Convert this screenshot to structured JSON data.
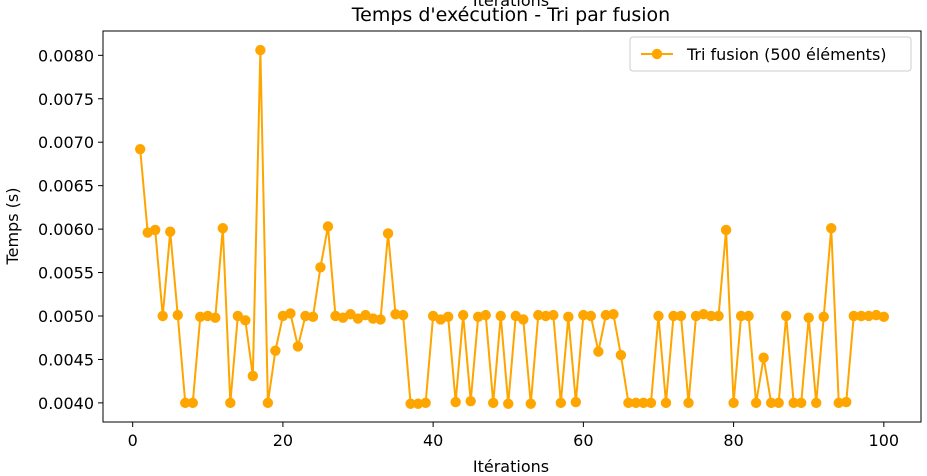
{
  "chart_data": {
    "type": "line",
    "title": "Temps d'exécution - Tri par fusion",
    "title_overlap_text": "Itérations",
    "xlabel": "Itérations",
    "ylabel": "Temps (s)",
    "xlim": [
      -3.95,
      104.95
    ],
    "ylim": [
      0.00378,
      0.00828
    ],
    "xticks": [
      0,
      20,
      40,
      60,
      80,
      100
    ],
    "yticks": [
      0.004,
      0.0045,
      0.005,
      0.0055,
      0.006,
      0.0065,
      0.007,
      0.0075,
      0.008
    ],
    "ytick_labels": [
      "0.0040",
      "0.0045",
      "0.0050",
      "0.0055",
      "0.0060",
      "0.0065",
      "0.0070",
      "0.0075",
      "0.0080"
    ],
    "grid": false,
    "legend_position": "top-right",
    "color": "#FFA500",
    "series": [
      {
        "name": "Tri fusion (500 éléments)",
        "x": [
          1,
          2,
          3,
          4,
          5,
          6,
          7,
          8,
          9,
          10,
          11,
          12,
          13,
          14,
          15,
          16,
          17,
          18,
          19,
          20,
          21,
          22,
          23,
          24,
          25,
          26,
          27,
          28,
          29,
          30,
          31,
          32,
          33,
          34,
          35,
          36,
          37,
          38,
          39,
          40,
          41,
          42,
          43,
          44,
          45,
          46,
          47,
          48,
          49,
          50,
          51,
          52,
          53,
          54,
          55,
          56,
          57,
          58,
          59,
          60,
          61,
          62,
          63,
          64,
          65,
          66,
          67,
          68,
          69,
          70,
          71,
          72,
          73,
          74,
          75,
          76,
          77,
          78,
          79,
          80,
          81,
          82,
          83,
          84,
          85,
          86,
          87,
          88,
          89,
          90,
          91,
          92,
          93,
          94,
          95,
          96,
          97,
          98,
          99,
          100
        ],
        "y": [
          0.00692,
          0.00596,
          0.00599,
          0.005,
          0.00597,
          0.00501,
          0.004,
          0.004,
          0.00499,
          0.005,
          0.00498,
          0.00601,
          0.004,
          0.005,
          0.00495,
          0.00431,
          0.00806,
          0.004,
          0.0046,
          0.005,
          0.00503,
          0.00465,
          0.005,
          0.00499,
          0.00556,
          0.00603,
          0.005,
          0.00498,
          0.00502,
          0.00497,
          0.00501,
          0.00497,
          0.00496,
          0.00595,
          0.00502,
          0.00501,
          0.00399,
          0.00399,
          0.004,
          0.005,
          0.00496,
          0.00499,
          0.00401,
          0.00501,
          0.00402,
          0.00499,
          0.00501,
          0.004,
          0.005,
          0.00399,
          0.005,
          0.00496,
          0.00399,
          0.00501,
          0.005,
          0.00501,
          0.004,
          0.00499,
          0.00401,
          0.00501,
          0.005,
          0.00459,
          0.00501,
          0.00502,
          0.00455,
          0.004,
          0.004,
          0.004,
          0.004,
          0.005,
          0.004,
          0.005,
          0.005,
          0.004,
          0.005,
          0.00502,
          0.005,
          0.005,
          0.00599,
          0.004,
          0.005,
          0.005,
          0.004,
          0.00452,
          0.004,
          0.004,
          0.005,
          0.004,
          0.004,
          0.00498,
          0.004,
          0.00499,
          0.00601,
          0.004,
          0.00401,
          0.005,
          0.005,
          0.005,
          0.00501,
          0.00499
        ]
      }
    ]
  }
}
